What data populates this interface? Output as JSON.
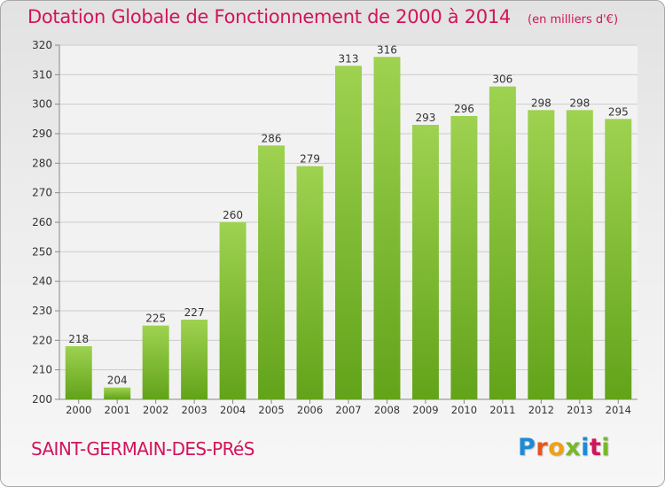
{
  "header": {
    "title": "Dotation Globale de Fonctionnement de 2000 à 2014",
    "subtitle": "(en milliers d'€)"
  },
  "footer": {
    "commune": "SAINT-GERMAIN-DES-PRéS",
    "brand_letters": [
      "P",
      "r",
      "o",
      "x",
      "i",
      "t",
      "i"
    ],
    "brand_colors": [
      "#1e8ad6",
      "#e8541a",
      "#f0a012",
      "#76b82a",
      "#1e8ad6",
      "#d2145a",
      "#76b82a"
    ]
  },
  "colors": {
    "accent": "#d2145a",
    "bar_top": "#9ed250",
    "bar_bottom": "#62a31a",
    "grid": "#cccccc"
  },
  "chart_data": {
    "type": "bar",
    "categories": [
      "2000",
      "2001",
      "2002",
      "2003",
      "2004",
      "2005",
      "2006",
      "2007",
      "2008",
      "2009",
      "2010",
      "2011",
      "2012",
      "2013",
      "2014"
    ],
    "values": [
      218,
      204,
      225,
      227,
      260,
      286,
      279,
      313,
      316,
      293,
      296,
      306,
      298,
      298,
      295
    ],
    "yticks": [
      200,
      210,
      220,
      230,
      240,
      250,
      260,
      270,
      280,
      290,
      300,
      310,
      320
    ],
    "ylim": [
      200,
      320
    ],
    "grid": true,
    "data_labels": true
  }
}
